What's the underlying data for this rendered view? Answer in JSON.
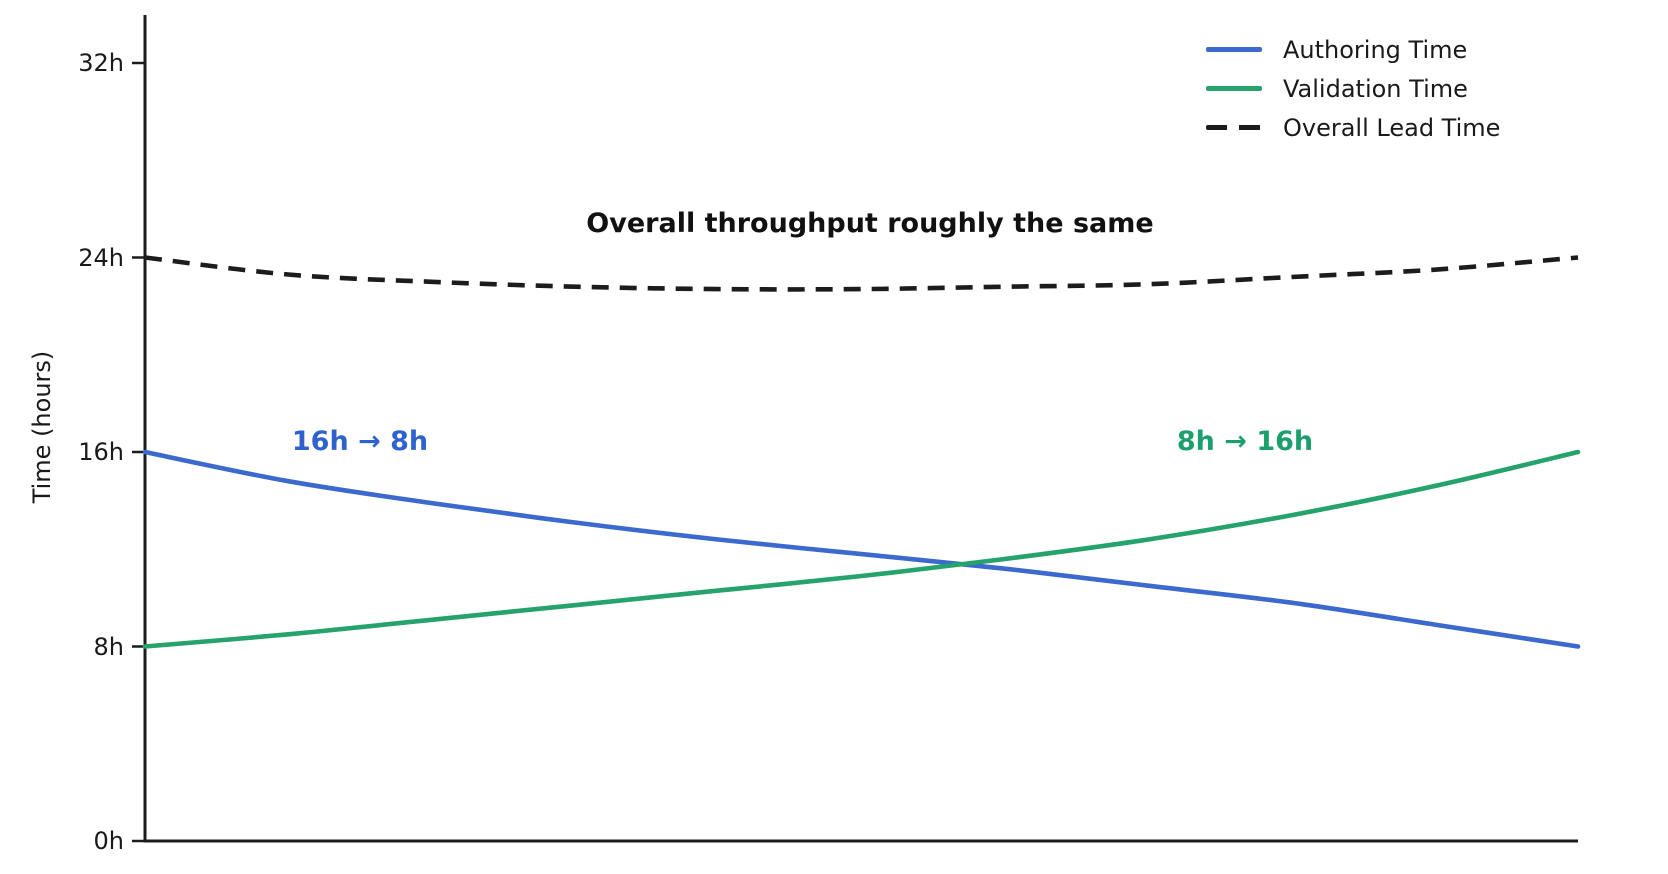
{
  "axis": {
    "ylabel": "Time (hours)",
    "yticks": [
      {
        "label": "0h",
        "hours": 0
      },
      {
        "label": "8h",
        "hours": 8
      },
      {
        "label": "16h",
        "hours": 16
      },
      {
        "label": "24h",
        "hours": 24
      },
      {
        "label": "32h",
        "hours": 32
      }
    ]
  },
  "annotations": {
    "center_note": {
      "text": "Overall throughput roughly the same",
      "color": "#111111"
    },
    "authoring_note": {
      "text": "16h → 8h",
      "color": "#2e62cc"
    },
    "validation_note": {
      "text": "8h → 16h",
      "color": "#1d9e6d"
    }
  },
  "chart_data": {
    "type": "line",
    "title": "",
    "xlabel": "",
    "ylabel": "Time (hours)",
    "ylim": [
      0,
      34
    ],
    "ytick_labels": [
      "0h",
      "8h",
      "16h",
      "24h",
      "32h"
    ],
    "ytick_values": [
      0,
      8,
      16,
      24,
      32
    ],
    "grid": false,
    "legend_position": "upper right",
    "x_normalized": [
      0,
      0.1,
      0.2,
      0.3,
      0.4,
      0.5,
      0.6,
      0.7,
      0.8,
      0.9,
      1.0
    ],
    "series": [
      {
        "name": "Authoring Time",
        "color": "#3b69ce",
        "style": "solid",
        "start_hours": 16,
        "end_hours": 8,
        "values": [
          16.0,
          14.8,
          13.9,
          13.1,
          12.4,
          11.8,
          11.2,
          10.5,
          9.8,
          8.9,
          8.0
        ]
      },
      {
        "name": "Validation Time",
        "color": "#26a26d",
        "style": "solid",
        "start_hours": 8,
        "end_hours": 16,
        "values": [
          8.0,
          8.5,
          9.1,
          9.7,
          10.3,
          10.9,
          11.6,
          12.4,
          13.4,
          14.6,
          16.0
        ]
      },
      {
        "name": "Overall Lead Time",
        "color": "#1c1c1c",
        "style": "dashed",
        "start_hours": 24,
        "end_hours": 24,
        "values": [
          24.0,
          23.3,
          23.0,
          22.8,
          22.7,
          22.7,
          22.8,
          22.9,
          23.2,
          23.5,
          24.0
        ]
      }
    ],
    "annotations": [
      {
        "text": "Overall throughput roughly the same",
        "series": null
      },
      {
        "text": "16h → 8h",
        "series": "Authoring Time"
      },
      {
        "text": "8h → 16h",
        "series": "Validation Time"
      }
    ]
  }
}
